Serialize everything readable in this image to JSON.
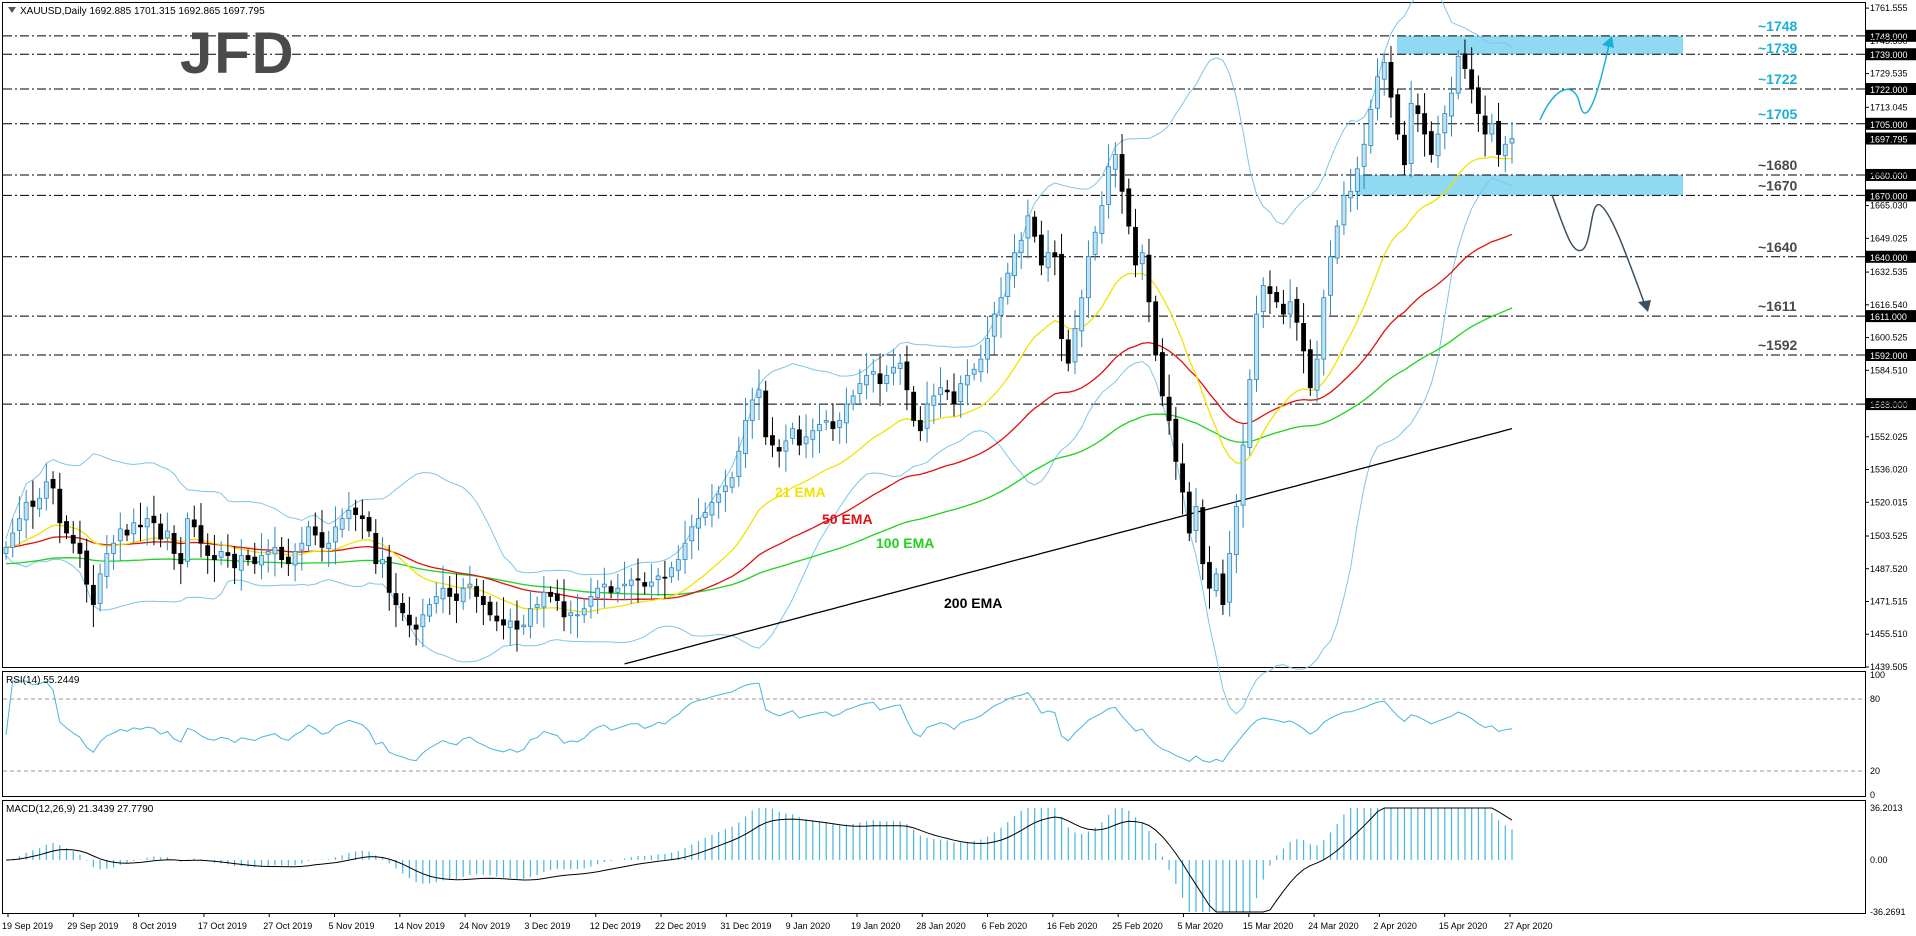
{
  "header": {
    "main": "XAUUSD,Daily  1692.885 1701.315 1692.865 1697.795",
    "rsi": "RSI(14) 55.2449",
    "macd": "MACD(12,26,9) 21.3439 27.7790"
  },
  "logo": "JFD",
  "colors": {
    "up_fill": "#bde3f5",
    "candle_outline": "#2d87c0",
    "down_fill": "#000000",
    "ema21": "#f2e100",
    "ema50": "#e01010",
    "ema100": "#1ed21e",
    "ema200": "#000000",
    "bollinger": "#7cc6ec",
    "zone": "#8fd9f2",
    "level_text": "#1ab0d6",
    "indicator": "#45b6e0",
    "grid": "#000000"
  },
  "price_axis": {
    "ticks": [
      "1761.555",
      "1745.590",
      "1729.535",
      "1713.045",
      "1697.795",
      "1681.020",
      "1665.030",
      "1649.025",
      "1632.535",
      "1616.540",
      "1600.525",
      "1584.510",
      "1568.000",
      "1552.025",
      "1536.020",
      "1520.015",
      "1503.525",
      "1487.520",
      "1471.515",
      "1455.510",
      "1439.505"
    ]
  },
  "levels": [
    {
      "value": 1748,
      "label": "~1748",
      "box": "1748.000"
    },
    {
      "value": 1739,
      "label": "~1739",
      "box": "1739.000"
    },
    {
      "value": 1722,
      "label": "~1722",
      "box": "1722.000"
    },
    {
      "value": 1705,
      "label": "~1705",
      "box": "1705.000"
    },
    {
      "value": 1680,
      "label": "~1680",
      "box": "1680.000"
    },
    {
      "value": 1670,
      "label": "~1670",
      "box": "1670.000"
    },
    {
      "value": 1640,
      "label": "~1640",
      "box": "1640.000"
    },
    {
      "value": 1611,
      "label": "~1611",
      "box": "1611.000"
    },
    {
      "value": 1592,
      "label": "~1592",
      "box": "1592.000"
    },
    {
      "value": 1568,
      "label": "",
      "box": "1568.000"
    }
  ],
  "current_price": "1697.795",
  "ema_labels": {
    "ema21": "21 EMA",
    "ema50": "50 EMA",
    "ema100": "100 EMA",
    "ema200": "200 EMA"
  },
  "x_axis": [
    "19 Sep 2019",
    "29 Sep 2019",
    "8 Oct 2019",
    "17 Oct 2019",
    "27 Oct 2019",
    "5 Nov 2019",
    "14 Nov 2019",
    "24 Nov 2019",
    "3 Dec 2019",
    "12 Dec 2019",
    "22 Dec 2019",
    "31 Dec 2019",
    "9 Jan 2020",
    "19 Jan 2020",
    "28 Jan 2020",
    "6 Feb 2020",
    "16 Feb 2020",
    "25 Feb 2020",
    "5 Mar 2020",
    "15 Mar 2020",
    "24 Mar 2020",
    "2 Apr 2020",
    "15 Apr 2020",
    "27 Apr 2020"
  ],
  "rsi_axis": {
    "levels": [
      "100",
      "80",
      "20",
      "0"
    ]
  },
  "macd_axis": {
    "levels": [
      "36.2013",
      "0.00",
      "-36.2691"
    ]
  },
  "chart_data": {
    "type": "candlestick",
    "symbol": "XAUUSD",
    "timeframe": "Daily",
    "ylim": [
      1439.5,
      1761.6
    ],
    "zones": [
      [
        1739,
        1748
      ],
      [
        1670,
        1680
      ]
    ],
    "closes": [
      1498,
      1505,
      1512,
      1520,
      1518,
      1522,
      1530,
      1527,
      1510,
      1505,
      1500,
      1495,
      1480,
      1470,
      1485,
      1495,
      1500,
      1507,
      1504,
      1510,
      1508,
      1512,
      1510,
      1502,
      1506,
      1495,
      1490,
      1512,
      1508,
      1500,
      1494,
      1492,
      1496,
      1494,
      1488,
      1494,
      1492,
      1490,
      1494,
      1496,
      1498,
      1492,
      1490,
      1496,
      1500,
      1508,
      1504,
      1498,
      1500,
      1508,
      1512,
      1516,
      1514,
      1512,
      1506,
      1490,
      1492,
      1476,
      1470,
      1466,
      1460,
      1458,
      1465,
      1470,
      1474,
      1478,
      1474,
      1472,
      1478,
      1480,
      1474,
      1470,
      1465,
      1462,
      1460,
      1462,
      1458,
      1460,
      1468,
      1470,
      1476,
      1474,
      1472,
      1464,
      1466,
      1465,
      1468,
      1474,
      1478,
      1480,
      1476,
      1478,
      1480,
      1482,
      1482,
      1479,
      1481,
      1484,
      1483,
      1488,
      1492,
      1500,
      1508,
      1512,
      1515,
      1520,
      1524,
      1528,
      1532,
      1545,
      1560,
      1570,
      1575,
      1552,
      1548,
      1545,
      1550,
      1556,
      1548,
      1552,
      1555,
      1558,
      1560,
      1556,
      1560,
      1568,
      1572,
      1578,
      1582,
      1584,
      1578,
      1582,
      1586,
      1588,
      1575,
      1560,
      1555,
      1568,
      1572,
      1576,
      1574,
      1568,
      1578,
      1582,
      1585,
      1590,
      1600,
      1612,
      1620,
      1632,
      1642,
      1648,
      1660,
      1650,
      1636,
      1642,
      1640,
      1600,
      1588,
      1605,
      1620,
      1640,
      1652,
      1665,
      1684,
      1690,
      1672,
      1655,
      1636,
      1642,
      1618,
      1592,
      1572,
      1560,
      1540,
      1525,
      1505,
      1518,
      1490,
      1478,
      1485,
      1470,
      1495,
      1518,
      1548,
      1580,
      1612,
      1626,
      1622,
      1618,
      1612,
      1618,
      1608,
      1594,
      1576,
      1590,
      1620,
      1640,
      1655,
      1670,
      1672,
      1683,
      1695,
      1712,
      1728,
      1735,
      1718,
      1700,
      1685,
      1715,
      1710,
      1700,
      1690,
      1700,
      1710,
      1720,
      1738,
      1732,
      1722,
      1710,
      1700,
      1705,
      1690,
      1695,
      1697.8
    ],
    "ema21": {
      "last": 1688
    },
    "ema50": {
      "last": 1651
    },
    "ema100": {
      "last": 1615
    },
    "ema200": {
      "last": 1556
    },
    "rsi": {
      "value": 55.2449,
      "levels": [
        20,
        80
      ]
    },
    "macd": {
      "main": 21.3439,
      "signal": 27.779,
      "range": [
        -36.2691,
        36.2013
      ]
    }
  }
}
